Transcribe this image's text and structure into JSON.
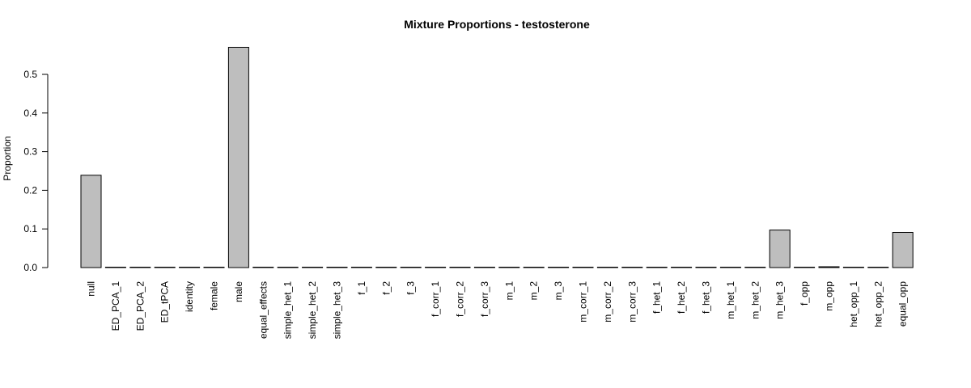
{
  "chart_data": {
    "type": "bar",
    "title": "Mixture Proportions - testosterone",
    "xlabel": "",
    "ylabel": "Proportion",
    "ylim": [
      0,
      0.6
    ],
    "yticks": [
      0.0,
      0.1,
      0.2,
      0.3,
      0.4,
      0.5
    ],
    "ytick_labels": [
      "0.0",
      "0.1",
      "0.2",
      "0.3",
      "0.4",
      "0.5"
    ],
    "grid": false,
    "bar_color": "#bebebe",
    "categories": [
      "null",
      "ED_PCA_1",
      "ED_PCA_2",
      "ED_tPCA",
      "identity",
      "female",
      "male",
      "equal_effects",
      "simple_het_1",
      "simple_het_2",
      "simple_het_3",
      "f_1",
      "f_2",
      "f_3",
      "f_corr_1",
      "f_corr_2",
      "f_corr_3",
      "m_1",
      "m_2",
      "m_3",
      "m_corr_1",
      "m_corr_2",
      "m_corr_3",
      "f_het_1",
      "f_het_2",
      "f_het_3",
      "m_het_1",
      "m_het_2",
      "m_het_3",
      "f_opp",
      "m_opp",
      "het_opp_1",
      "het_opp_2",
      "equal_opp"
    ],
    "values": [
      0.239,
      0,
      0,
      0,
      0,
      0,
      0.57,
      0,
      0,
      0,
      0,
      0,
      0,
      0,
      0,
      0,
      0.001,
      0,
      0,
      0.001,
      0,
      0,
      0,
      0,
      0,
      0,
      0,
      0,
      0.097,
      0,
      0.002,
      0,
      0,
      0.091
    ]
  }
}
